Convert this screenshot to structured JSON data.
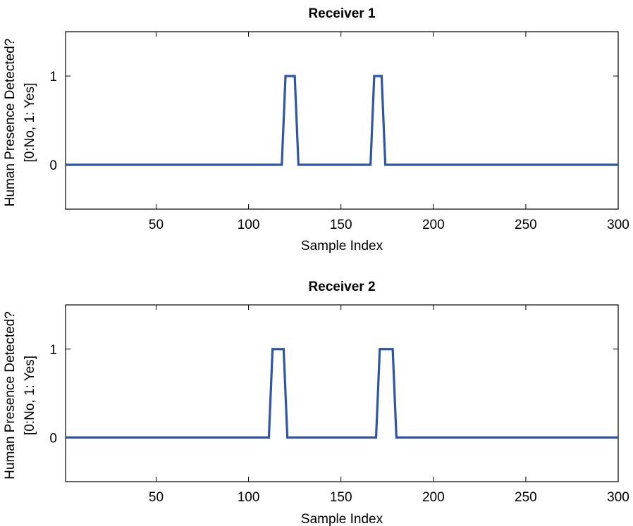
{
  "chart_data": [
    {
      "type": "line",
      "title": "Receiver 1",
      "xlabel": "Sample Index",
      "ylabel": [
        "Human Presence Detected?",
        "[0:No, 1: Yes]"
      ],
      "xlim": [
        1,
        300
      ],
      "ylim": [
        -0.5,
        1.5
      ],
      "xticks": [
        50,
        100,
        150,
        200,
        250,
        300
      ],
      "yticks": [
        0,
        1
      ],
      "grid": false,
      "series": [
        {
          "color": "#2f55a6",
          "x": [
            1,
            118,
            120,
            125,
            127,
            166,
            168,
            172,
            174,
            300
          ],
          "y": [
            0,
            0,
            1,
            1,
            0,
            0,
            1,
            1,
            0,
            0
          ]
        }
      ]
    },
    {
      "type": "line",
      "title": "Receiver 2",
      "xlabel": "Sample Index",
      "ylabel": [
        "Human Presence Detected?",
        "[0:No, 1: Yes]"
      ],
      "xlim": [
        1,
        300
      ],
      "ylim": [
        -0.5,
        1.5
      ],
      "xticks": [
        50,
        100,
        150,
        200,
        250,
        300
      ],
      "yticks": [
        0,
        1
      ],
      "grid": false,
      "series": [
        {
          "color": "#2f55a6",
          "x": [
            1,
            111,
            113,
            119,
            121,
            169,
            171,
            178,
            180,
            300
          ],
          "y": [
            0,
            0,
            1,
            1,
            0,
            0,
            1,
            1,
            0,
            0
          ]
        }
      ]
    }
  ]
}
